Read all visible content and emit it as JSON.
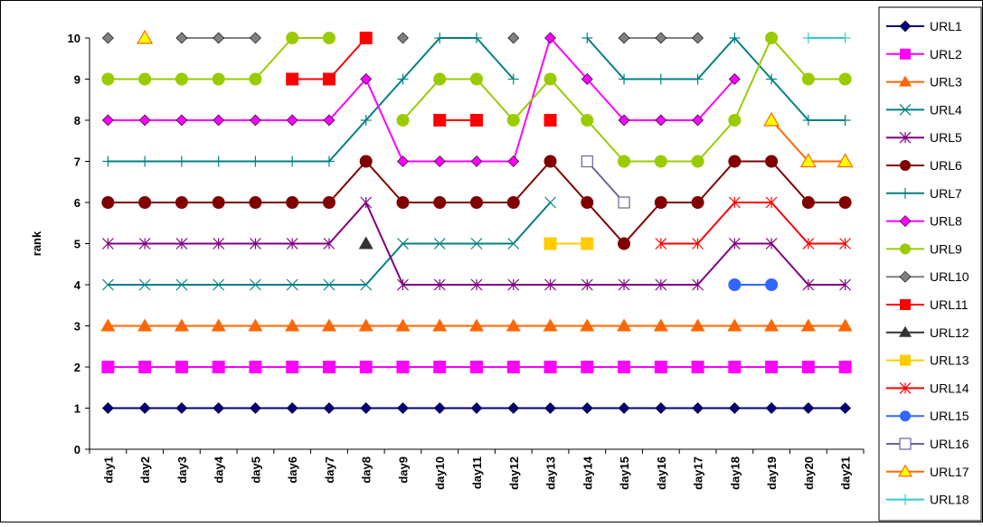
{
  "chart_data": {
    "type": "line",
    "title": "",
    "xlabel": "",
    "ylabel": "rank",
    "ylim": [
      0,
      10
    ],
    "yticks": [
      0,
      1,
      2,
      3,
      4,
      5,
      6,
      7,
      8,
      9,
      10
    ],
    "grid": false,
    "legend_position": "right",
    "categories": [
      "day1",
      "day2",
      "day3",
      "day4",
      "day5",
      "day6",
      "day7",
      "day8",
      "day9",
      "day10",
      "day11",
      "day12",
      "day13",
      "day14",
      "day15",
      "day16",
      "day17",
      "day18",
      "day19",
      "day20",
      "day21"
    ],
    "series": [
      {
        "name": "URL1",
        "color": "#000080",
        "marker": "diamond",
        "values": [
          1,
          1,
          1,
          1,
          1,
          1,
          1,
          1,
          1,
          1,
          1,
          1,
          1,
          1,
          1,
          1,
          1,
          1,
          1,
          1,
          1
        ]
      },
      {
        "name": "URL2",
        "color": "#ff00ff",
        "marker": "square",
        "values": [
          2,
          2,
          2,
          2,
          2,
          2,
          2,
          2,
          2,
          2,
          2,
          2,
          2,
          2,
          2,
          2,
          2,
          2,
          2,
          2,
          2
        ]
      },
      {
        "name": "URL3",
        "color": "#ff6600",
        "marker": "triangle",
        "values": [
          3,
          3,
          3,
          3,
          3,
          3,
          3,
          3,
          3,
          3,
          3,
          3,
          3,
          3,
          3,
          3,
          3,
          3,
          3,
          3,
          3
        ]
      },
      {
        "name": "URL4",
        "color": "#008080",
        "marker": "x",
        "values": [
          4,
          4,
          4,
          4,
          4,
          4,
          4,
          4,
          5,
          5,
          5,
          5,
          6,
          null,
          null,
          null,
          null,
          null,
          null,
          null,
          null
        ]
      },
      {
        "name": "URL5",
        "color": "#800080",
        "marker": "asterisk",
        "values": [
          5,
          5,
          5,
          5,
          5,
          5,
          5,
          6,
          4,
          4,
          4,
          4,
          4,
          4,
          4,
          4,
          4,
          5,
          5,
          4,
          4
        ]
      },
      {
        "name": "URL6",
        "color": "#800000",
        "marker": "circle",
        "values": [
          6,
          6,
          6,
          6,
          6,
          6,
          6,
          7,
          6,
          6,
          6,
          6,
          7,
          6,
          5,
          6,
          6,
          7,
          7,
          6,
          6
        ]
      },
      {
        "name": "URL7",
        "color": "#008080",
        "marker": "plus",
        "values": [
          7,
          7,
          7,
          7,
          7,
          7,
          7,
          8,
          9,
          10,
          10,
          9,
          null,
          10,
          9,
          9,
          9,
          10,
          9,
          8,
          8
        ]
      },
      {
        "name": "URL8",
        "color": "#ff00ff",
        "marker": "diamond",
        "values": [
          8,
          8,
          8,
          8,
          8,
          8,
          8,
          9,
          7,
          7,
          7,
          7,
          10,
          9,
          8,
          8,
          8,
          9,
          null,
          null,
          null
        ]
      },
      {
        "name": "URL9",
        "color": "#99cc00",
        "marker": "circle",
        "values": [
          9,
          9,
          9,
          9,
          9,
          10,
          10,
          null,
          8,
          9,
          9,
          8,
          9,
          8,
          7,
          7,
          7,
          8,
          10,
          9,
          9
        ]
      },
      {
        "name": "URL10",
        "color": "#808080",
        "marker": "diamond",
        "values": [
          10,
          null,
          10,
          10,
          10,
          null,
          null,
          null,
          10,
          null,
          null,
          10,
          null,
          null,
          10,
          10,
          10,
          null,
          null,
          null,
          null
        ]
      },
      {
        "name": "URL11",
        "color": "#ff0000",
        "marker": "square",
        "values": [
          null,
          null,
          null,
          null,
          null,
          9,
          9,
          10,
          null,
          8,
          8,
          null,
          8,
          null,
          null,
          null,
          null,
          null,
          null,
          null,
          null
        ]
      },
      {
        "name": "URL12",
        "color": "#333333",
        "marker": "triangle",
        "values": [
          null,
          null,
          null,
          null,
          null,
          null,
          null,
          5,
          null,
          null,
          null,
          null,
          null,
          null,
          null,
          null,
          null,
          null,
          null,
          null,
          null
        ]
      },
      {
        "name": "URL13",
        "color": "#ffcc00",
        "marker": "square",
        "values": [
          null,
          null,
          null,
          null,
          null,
          null,
          null,
          null,
          null,
          null,
          null,
          null,
          5,
          5,
          null,
          null,
          null,
          null,
          null,
          null,
          null
        ]
      },
      {
        "name": "URL14",
        "color": "#ff0000",
        "marker": "asterisk",
        "values": [
          null,
          null,
          null,
          null,
          null,
          null,
          null,
          null,
          null,
          null,
          null,
          null,
          null,
          null,
          null,
          5,
          5,
          6,
          6,
          5,
          5
        ]
      },
      {
        "name": "URL15",
        "color": "#3366ff",
        "marker": "circle",
        "values": [
          null,
          null,
          null,
          null,
          null,
          null,
          null,
          null,
          null,
          null,
          null,
          null,
          null,
          null,
          null,
          null,
          null,
          4,
          4,
          null,
          null
        ]
      },
      {
        "name": "URL16",
        "color": "#666699",
        "marker": "open-square",
        "values": [
          null,
          null,
          null,
          null,
          null,
          null,
          null,
          null,
          null,
          null,
          null,
          null,
          null,
          7,
          6,
          null,
          null,
          null,
          null,
          null,
          null
        ]
      },
      {
        "name": "URL17",
        "color": "#ff6600",
        "marker": "yellow-triangle",
        "values": [
          null,
          10,
          null,
          null,
          null,
          null,
          null,
          null,
          null,
          null,
          null,
          null,
          null,
          null,
          null,
          null,
          null,
          null,
          8,
          7,
          7
        ]
      },
      {
        "name": "URL18",
        "color": "#33cccc",
        "marker": "plus",
        "values": [
          null,
          null,
          null,
          null,
          null,
          null,
          null,
          null,
          null,
          null,
          null,
          null,
          null,
          null,
          null,
          null,
          null,
          null,
          null,
          10,
          10
        ]
      }
    ]
  }
}
